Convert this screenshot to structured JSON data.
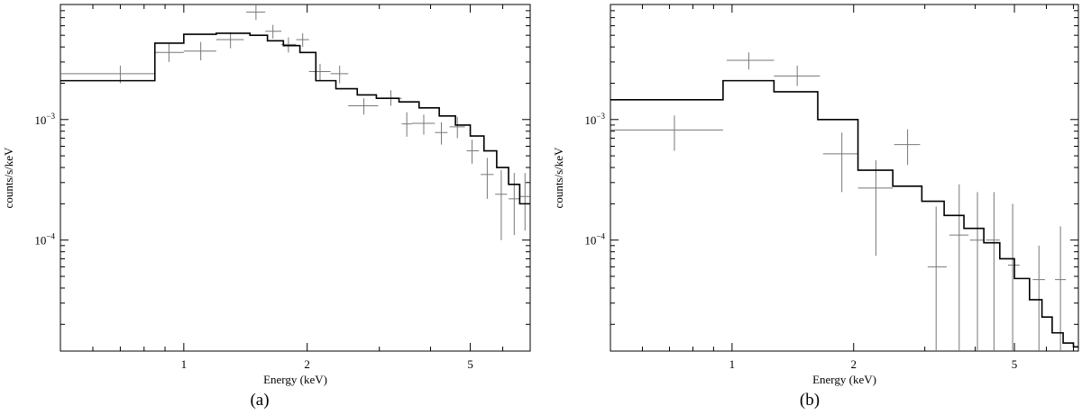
{
  "chart_data": [
    {
      "type": "line",
      "panel_label": "(a)",
      "xlabel": "Energy (keV)",
      "ylabel": "counts/s/keV",
      "xscale": "log",
      "yscale": "log",
      "xlim": [
        0.5,
        7.0
      ],
      "ylim": [
        1.2e-05,
        0.009
      ],
      "x_ticks": [
        {
          "value": 1,
          "label": "1"
        },
        {
          "value": 2,
          "label": "2"
        },
        {
          "value": 5,
          "label": "5"
        }
      ],
      "y_ticks": [
        {
          "value": 0.001,
          "label": "10",
          "exp": "−3"
        },
        {
          "value": 0.0001,
          "label": "10",
          "exp": "−4"
        }
      ],
      "model": {
        "edges": [
          0.5,
          0.85,
          1.0,
          1.2,
          1.45,
          1.6,
          1.75,
          1.92,
          2.1,
          2.35,
          2.65,
          2.95,
          3.35,
          3.75,
          4.2,
          4.6,
          5.0,
          5.4,
          5.8,
          6.2,
          6.6,
          7.0
        ],
        "values": [
          0.0021,
          0.0043,
          0.0051,
          0.0052,
          0.005,
          0.0045,
          0.0041,
          0.0036,
          0.0021,
          0.0018,
          0.0016,
          0.0015,
          0.0014,
          0.00125,
          0.00107,
          0.0009,
          0.00073,
          0.00055,
          0.0004,
          0.00029,
          0.0002
        ]
      },
      "data_points": [
        {
          "x": 0.7,
          "xlo": 0.5,
          "xhi": 0.85,
          "y": 0.0024,
          "ylo": 0.002,
          "yhi": 0.0028
        },
        {
          "x": 0.92,
          "xlo": 0.85,
          "xhi": 1.0,
          "y": 0.0036,
          "ylo": 0.003,
          "yhi": 0.0043
        },
        {
          "x": 1.1,
          "xlo": 1.0,
          "xhi": 1.2,
          "y": 0.0037,
          "ylo": 0.0031,
          "yhi": 0.0044
        },
        {
          "x": 1.3,
          "xlo": 1.2,
          "xhi": 1.4,
          "y": 0.0046,
          "ylo": 0.0039,
          "yhi": 0.0053
        },
        {
          "x": 1.5,
          "xlo": 1.42,
          "xhi": 1.58,
          "y": 0.0078,
          "ylo": 0.0067,
          "yhi": 0.009
        },
        {
          "x": 1.65,
          "xlo": 1.58,
          "xhi": 1.73,
          "y": 0.0054,
          "ylo": 0.0047,
          "yhi": 0.0061
        },
        {
          "x": 1.8,
          "xlo": 1.73,
          "xhi": 1.88,
          "y": 0.0042,
          "ylo": 0.0036,
          "yhi": 0.0048
        },
        {
          "x": 1.95,
          "xlo": 1.88,
          "xhi": 2.02,
          "y": 0.0046,
          "ylo": 0.004,
          "yhi": 0.0052
        },
        {
          "x": 2.15,
          "xlo": 2.02,
          "xhi": 2.28,
          "y": 0.0025,
          "ylo": 0.0021,
          "yhi": 0.0029
        },
        {
          "x": 2.4,
          "xlo": 2.28,
          "xhi": 2.52,
          "y": 0.0024,
          "ylo": 0.002,
          "yhi": 0.0028
        },
        {
          "x": 2.75,
          "xlo": 2.52,
          "xhi": 2.98,
          "y": 0.0013,
          "ylo": 0.0011,
          "yhi": 0.0015
        },
        {
          "x": 3.2,
          "xlo": 2.98,
          "xhi": 3.4,
          "y": 0.0015,
          "ylo": 0.0013,
          "yhi": 0.00175
        },
        {
          "x": 3.5,
          "xlo": 3.4,
          "xhi": 3.6,
          "y": 0.00092,
          "ylo": 0.00072,
          "yhi": 0.00115
        },
        {
          "x": 3.85,
          "xlo": 3.6,
          "xhi": 4.1,
          "y": 0.00093,
          "ylo": 0.00075,
          "yhi": 0.0011
        },
        {
          "x": 4.25,
          "xlo": 4.1,
          "xhi": 4.4,
          "y": 0.00078,
          "ylo": 0.00062,
          "yhi": 0.00095
        },
        {
          "x": 4.65,
          "xlo": 4.45,
          "xhi": 4.85,
          "y": 0.00087,
          "ylo": 0.0007,
          "yhi": 0.00105
        },
        {
          "x": 5.05,
          "xlo": 4.9,
          "xhi": 5.25,
          "y": 0.00055,
          "ylo": 0.00043,
          "yhi": 0.00068
        },
        {
          "x": 5.5,
          "xlo": 5.3,
          "xhi": 5.7,
          "y": 0.00035,
          "ylo": 0.00022,
          "yhi": 0.00048
        },
        {
          "x": 5.95,
          "xlo": 5.75,
          "xhi": 6.15,
          "y": 0.00024,
          "ylo": 0.0001,
          "yhi": 0.00038
        },
        {
          "x": 6.4,
          "xlo": 6.2,
          "xhi": 6.6,
          "y": 0.00022,
          "ylo": 0.00011,
          "yhi": 0.00036
        },
        {
          "x": 6.8,
          "xlo": 6.62,
          "xhi": 6.98,
          "y": 0.00023,
          "ylo": 0.00012,
          "yhi": 0.00036
        }
      ]
    },
    {
      "type": "line",
      "panel_label": "(b)",
      "xlabel": "Energy (keV)",
      "ylabel": "counts/s/keV",
      "xscale": "log",
      "yscale": "log",
      "xlim": [
        0.5,
        7.2
      ],
      "ylim": [
        1.2e-05,
        0.009
      ],
      "x_ticks": [
        {
          "value": 1,
          "label": "1"
        },
        {
          "value": 2,
          "label": "2"
        },
        {
          "value": 5,
          "label": "5"
        }
      ],
      "y_ticks": [
        {
          "value": 0.001,
          "label": "10",
          "exp": "−3"
        },
        {
          "value": 0.0001,
          "label": "10",
          "exp": "−4"
        }
      ],
      "model": {
        "edges": [
          0.5,
          0.95,
          1.27,
          1.63,
          2.05,
          2.5,
          2.95,
          3.35,
          3.75,
          4.2,
          4.6,
          5.0,
          5.45,
          5.85,
          6.2,
          6.6,
          7.0,
          7.2
        ],
        "values": [
          0.00146,
          0.0021,
          0.0017,
          0.001,
          0.00038,
          0.00028,
          0.00021,
          0.00016,
          0.000125,
          9.5e-05,
          7e-05,
          4.8e-05,
          3.2e-05,
          2.3e-05,
          1.7e-05,
          1.4e-05,
          1.3e-05
        ]
      },
      "data_points": [
        {
          "x": 0.72,
          "xlo": 0.5,
          "xhi": 0.95,
          "y": 0.00082,
          "ylo": 0.00055,
          "yhi": 0.00108
        },
        {
          "x": 1.1,
          "xlo": 0.97,
          "xhi": 1.27,
          "y": 0.0031,
          "ylo": 0.0026,
          "yhi": 0.0036
        },
        {
          "x": 1.45,
          "xlo": 1.27,
          "xhi": 1.65,
          "y": 0.0023,
          "ylo": 0.0019,
          "yhi": 0.0028
        },
        {
          "x": 1.87,
          "xlo": 1.68,
          "xhi": 2.05,
          "y": 0.00052,
          "ylo": 0.00025,
          "yhi": 0.00078
        },
        {
          "x": 2.27,
          "xlo": 2.05,
          "xhi": 2.5,
          "y": 0.00027,
          "ylo": 7.4e-05,
          "yhi": 0.00046
        },
        {
          "x": 2.72,
          "xlo": 2.52,
          "xhi": 2.92,
          "y": 0.00062,
          "ylo": 0.00042,
          "yhi": 0.00083
        },
        {
          "x": 3.2,
          "xlo": 3.05,
          "xhi": 3.4,
          "y": 6e-05,
          "ylo": 1.2e-05,
          "yhi": 0.00019
        },
        {
          "x": 3.65,
          "xlo": 3.45,
          "xhi": 3.85,
          "y": 0.00011,
          "ylo": 1.2e-05,
          "yhi": 0.00029
        },
        {
          "x": 4.05,
          "xlo": 3.88,
          "xhi": 4.22,
          "y": 0.0001,
          "ylo": 1.2e-05,
          "yhi": 0.00025
        },
        {
          "x": 4.45,
          "xlo": 4.25,
          "xhi": 4.6,
          "y": 0.0001,
          "ylo": 1.2e-05,
          "yhi": 0.00025
        },
        {
          "x": 4.95,
          "xlo": 4.82,
          "xhi": 5.15,
          "y": 6.2e-05,
          "ylo": 1.2e-05,
          "yhi": 0.0002
        },
        {
          "x": 5.75,
          "xlo": 5.55,
          "xhi": 5.95,
          "y": 4.7e-05,
          "ylo": 1.2e-05,
          "yhi": 9e-05
        },
        {
          "x": 6.5,
          "xlo": 6.3,
          "xhi": 6.7,
          "y": 4.7e-05,
          "ylo": 1.2e-05,
          "yhi": 0.00013
        }
      ]
    }
  ]
}
